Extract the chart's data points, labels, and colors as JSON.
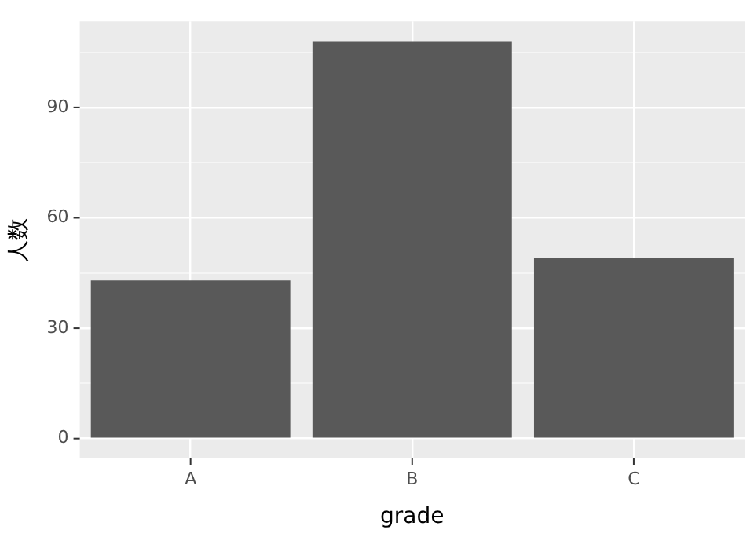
{
  "chart_data": {
    "type": "bar",
    "xlabel": "grade",
    "ylabel": "人数",
    "categories": [
      "A",
      "B",
      "C"
    ],
    "values": [
      43,
      108,
      49
    ],
    "color": "#595959",
    "ylim": [
      -5.4,
      113.4
    ],
    "yticks": [
      0,
      {
        "value": 15,
        "label": null
      },
      30,
      {
        "value": 45,
        "label": null
      },
      60,
      {
        "value": 75,
        "label": null
      },
      90,
      {
        "value": 105,
        "label": null
      }
    ],
    "grid": true
  }
}
